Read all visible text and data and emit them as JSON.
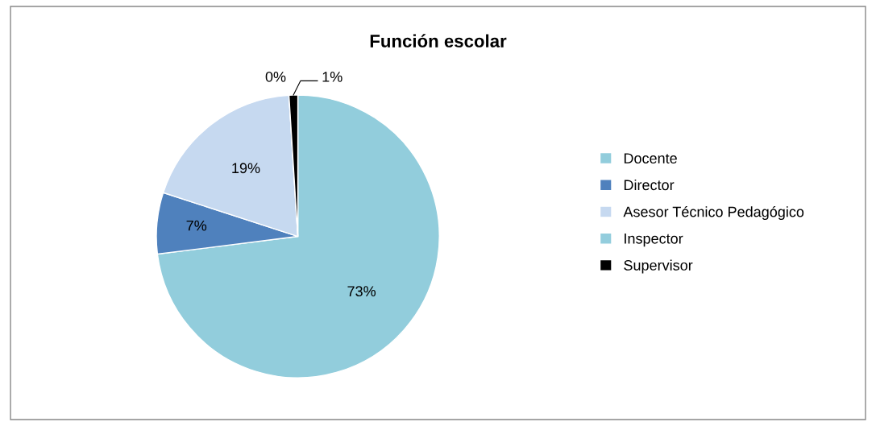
{
  "chart_data": {
    "type": "pie",
    "title": "Función escolar",
    "categories": [
      "Docente",
      "Director",
      "Asesor Técnico Pedagógico",
      "Inspector",
      "Supervisor"
    ],
    "values": [
      73,
      7,
      19,
      0,
      1
    ],
    "colors": [
      "#92cddc",
      "#4f81bd",
      "#c6d9f0",
      "#93cddd",
      "#000000"
    ],
    "value_labels": [
      "73%",
      "7%",
      "19%",
      "0%",
      "1%"
    ],
    "legend": "right"
  }
}
